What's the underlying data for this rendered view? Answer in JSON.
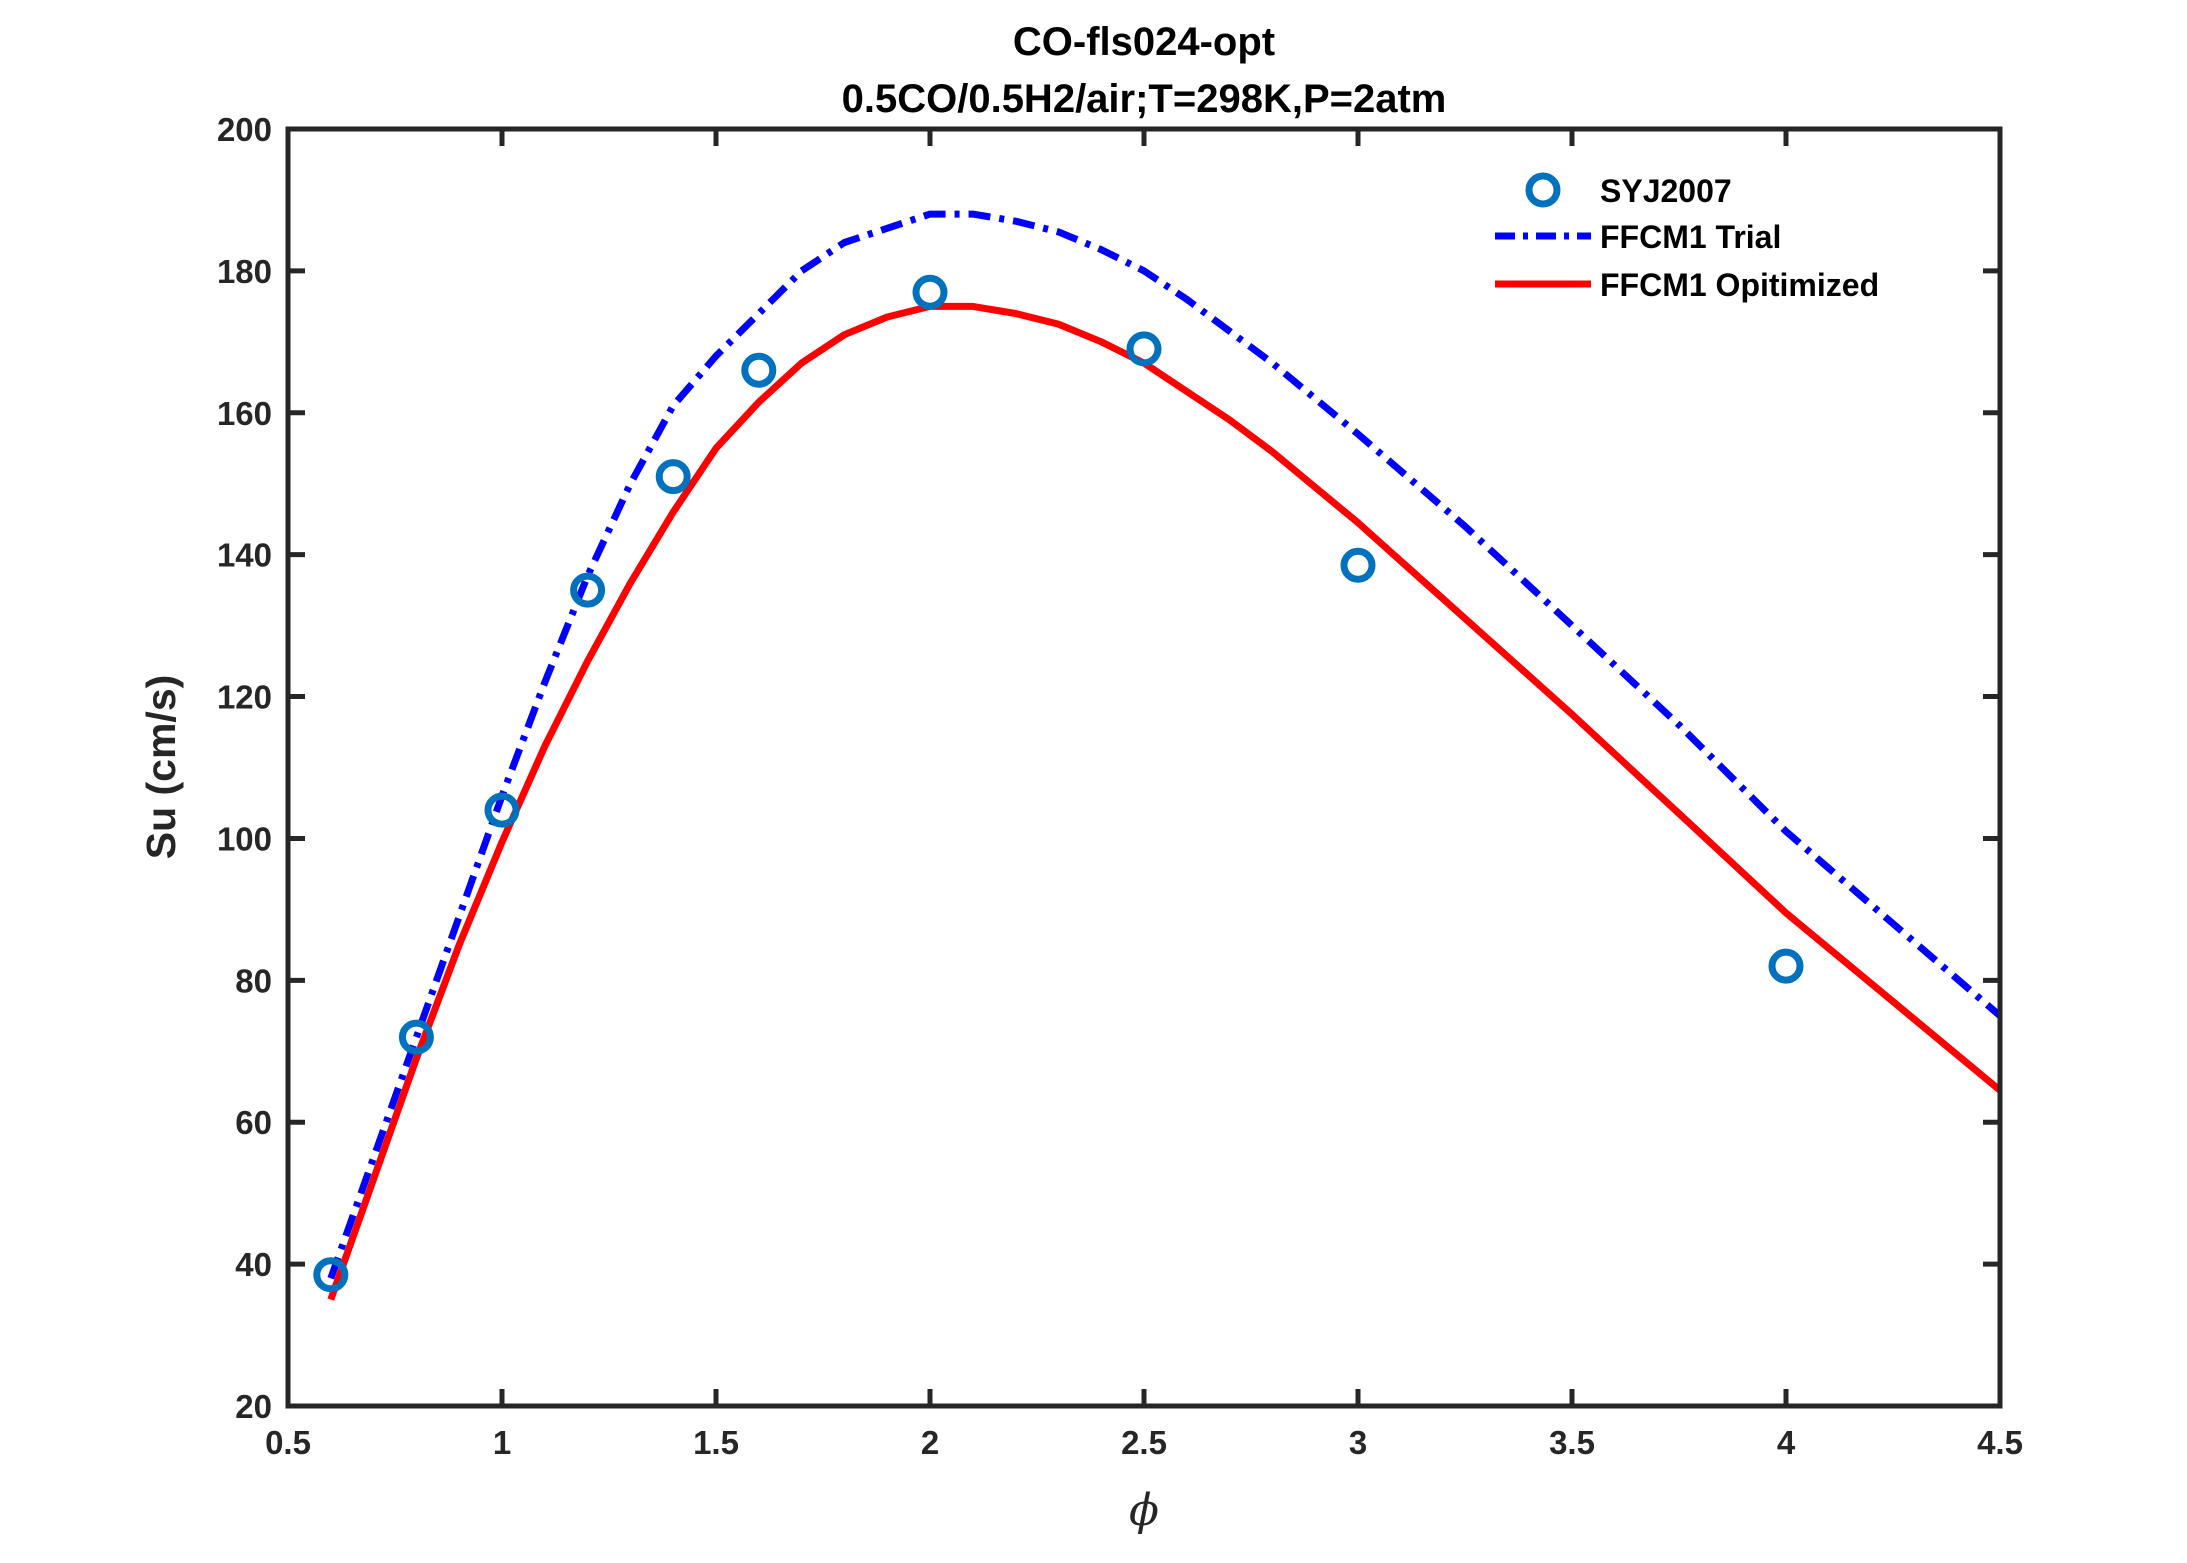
{
  "chart_data": {
    "type": "line",
    "title": [
      "CO-fls024-opt",
      "0.5CO/0.5H2/air;T=298K,P=2atm"
    ],
    "xlabel": "ϕ",
    "ylabel": "Su (cm/s)",
    "xlim": [
      0.5,
      4.5
    ],
    "ylim": [
      20,
      200
    ],
    "xticks": [
      0.5,
      1,
      1.5,
      2,
      2.5,
      3,
      3.5,
      4,
      4.5
    ],
    "xtick_labels": [
      "0.5",
      "1",
      "1.5",
      "2",
      "2.5",
      "3",
      "3.5",
      "4",
      "4.5"
    ],
    "yticks": [
      20,
      40,
      60,
      80,
      100,
      120,
      140,
      160,
      180,
      200
    ],
    "ytick_labels": [
      "20",
      "40",
      "60",
      "80",
      "100",
      "120",
      "140",
      "160",
      "180",
      "200"
    ],
    "grid": false,
    "legend_position": "top-right",
    "series": [
      {
        "name": "SYJ2007",
        "kind": "scatter",
        "marker": "circle",
        "color": "#0072BD",
        "x": [
          0.6,
          0.8,
          1.0,
          1.2,
          1.4,
          1.6,
          2.0,
          2.5,
          3.0,
          4.0
        ],
        "y": [
          38.5,
          72,
          104,
          135,
          151,
          166,
          177,
          169,
          138.5,
          82
        ]
      },
      {
        "name": "FFCM1 Trial",
        "kind": "line",
        "dash": "dashdot",
        "color": "#0000FF",
        "x": [
          0.6,
          0.7,
          0.8,
          0.9,
          1.0,
          1.1,
          1.2,
          1.3,
          1.4,
          1.5,
          1.6,
          1.7,
          1.8,
          1.9,
          2.0,
          2.1,
          2.2,
          2.3,
          2.4,
          2.5,
          2.6,
          2.7,
          2.8,
          2.9,
          3.0,
          3.25,
          3.5,
          3.75,
          4.0,
          4.25,
          4.5
        ],
        "y": [
          38,
          55,
          72,
          89,
          106,
          122,
          137,
          150,
          161,
          168,
          174,
          180,
          184,
          186,
          188,
          188,
          187,
          185.5,
          183,
          180,
          176,
          171.5,
          167,
          162,
          157,
          144,
          130,
          116,
          101,
          88,
          75
        ]
      },
      {
        "name": "FFCM1 Opitimized",
        "kind": "line",
        "dash": "solid",
        "color": "#FF0000",
        "x": [
          0.6,
          0.7,
          0.8,
          0.9,
          1.0,
          1.1,
          1.2,
          1.3,
          1.4,
          1.5,
          1.6,
          1.7,
          1.8,
          1.9,
          2.0,
          2.1,
          2.2,
          2.3,
          2.4,
          2.5,
          2.6,
          2.7,
          2.8,
          2.9,
          3.0,
          3.25,
          3.5,
          3.75,
          4.0,
          4.25,
          4.5
        ],
        "y": [
          35,
          52,
          69,
          85,
          99.5,
          113,
          125,
          136,
          146,
          155,
          161.5,
          167,
          171,
          173.5,
          175,
          175,
          174,
          172.5,
          170,
          167,
          163,
          159,
          154.5,
          149.5,
          144.5,
          131,
          117.5,
          103.5,
          89.5,
          77,
          64.5
        ]
      }
    ]
  }
}
